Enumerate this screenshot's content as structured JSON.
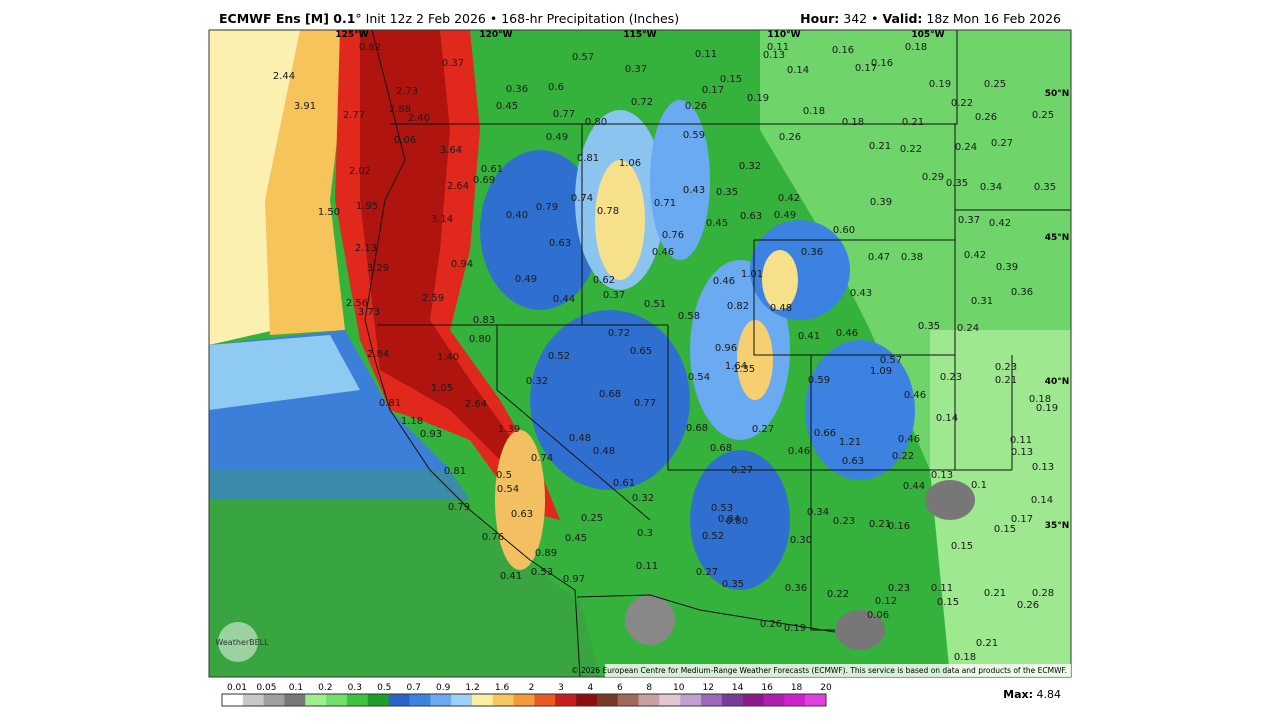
{
  "header": {
    "title_bold": "ECMWF Ens [M] 0.1",
    "title_rest": "° Init 12z 2 Feb 2026 • 168-hr Precipitation (Inches)",
    "hour_label": "Hour:",
    "hour": "342 •",
    "valid_label": "Valid:",
    "valid": "18z Mon 16 Feb 2026"
  },
  "map": {
    "longitudes": [
      "125°W",
      "120°W",
      "115°W",
      "110°W",
      "105°W"
    ],
    "latitudes": [
      "50°N",
      "45°N",
      "40°N",
      "35°N"
    ],
    "values": [
      "0.82",
      "0.37",
      "0.57",
      "0.37",
      "0.11",
      "0.11",
      "0.13",
      "0.16",
      "0.18",
      "0.17",
      "0.16",
      "2.44",
      "2.73",
      "0.36",
      "0.6",
      "0.15",
      "0.17",
      "0.14",
      "0.19",
      "0.25",
      "0.19",
      "3.91",
      "2.88",
      "0.45",
      "0.77",
      "0.72",
      "0.26",
      "0.18",
      "0.22",
      "2.77",
      "2.40",
      "0.80",
      "0.18",
      "0.21",
      "0.26",
      "0.25",
      "0.49",
      "0.59",
      "0.26",
      "0.24",
      "0.27",
      "0.06",
      "3.64",
      "0.81",
      "1.06",
      "0.21",
      "0.22",
      "0.32",
      "2.02",
      "0.61",
      "2.64",
      "0.69",
      "0.43",
      "0.35",
      "0.29",
      "0.35",
      "0.34",
      "0.35",
      "0.74",
      "0.71",
      "0.42",
      "0.39",
      "1.50",
      "1.95",
      "0.79",
      "0.78",
      "0.40",
      "0.45",
      "0.63",
      "0.49",
      "0.37",
      "0.42",
      "3.14",
      "0.60",
      "0.76",
      "0.63",
      "2.13",
      "0.46",
      "0.36",
      "0.47",
      "0.38",
      "0.42",
      "0.94",
      "3.29",
      "1.01",
      "0.39",
      "0.49",
      "0.62",
      "0.46",
      "0.43",
      "0.36",
      "0.44",
      "0.37",
      "0.51",
      "2.59",
      "2.56",
      "0.82",
      "0.48",
      "0.31",
      "3.73",
      "0.58",
      "0.83",
      "0.72",
      "0.35",
      "0.24",
      "0.80",
      "0.41",
      "0.46",
      "0.96",
      "0.65",
      "2.84",
      "1.40",
      "0.52",
      "1.64",
      "1.35",
      "0.57",
      "0.23",
      "0.54",
      "1.09",
      "0.59",
      "0.32",
      "0.23",
      "0.21",
      "1.05",
      "0.68",
      "0.46",
      "0.18",
      "0.19",
      "0.77",
      "2.64",
      "0.81",
      "0.14",
      "1.18",
      "0.68",
      "0.27",
      "0.66",
      "1.39",
      "0.93",
      "0.46",
      "0.11",
      "1.21",
      "0.48",
      "0.48",
      "0.68",
      "0.46",
      "0.13",
      "0.22",
      "0.74",
      "0.63",
      "0.27",
      "0.13",
      "0.81",
      "0.13",
      "0.5",
      "0.1",
      "0.54",
      "0.61",
      "0.44",
      "0.32",
      "0.14",
      "0.79",
      "0.53",
      "0.34",
      "0.63",
      "0.25",
      "0.84",
      "0.80",
      "0.23",
      "0.21",
      "0.16",
      "0.17",
      "0.15",
      "0.3",
      "0.76",
      "0.52",
      "0.45",
      "0.30",
      "0.15",
      "0.89",
      "0.11",
      "0.27",
      "0.53",
      "0.41",
      "0.97",
      "0.35",
      "0.36",
      "0.23",
      "0.11",
      "0.22",
      "0.21",
      "0.28",
      "0.12",
      "0.15",
      "0.26",
      "0.06",
      "0.26",
      "0.19",
      "0.21",
      "0.18"
    ],
    "logo": "WeatherBELL",
    "credit": "© 2026 European Centre for Medium-Range Weather Forecasts (ECMWF). This service is based on data and products of the ECMWF."
  },
  "colorbar": {
    "ticks": [
      "0.01",
      "0.05",
      "0.1",
      "0.2",
      "0.3",
      "0.5",
      "0.7",
      "0.9",
      "1.2",
      "1.6",
      "2",
      "3",
      "4",
      "6",
      "8",
      "10",
      "12",
      "14",
      "16",
      "18",
      "20"
    ],
    "colors": [
      "#ffffff",
      "#c8c8c8",
      "#a0a0a0",
      "#787878",
      "#9ef08f",
      "#6fe06a",
      "#3dc43d",
      "#1e9e2a",
      "#2a64c8",
      "#3c82e0",
      "#6aaaf0",
      "#9cd0f8",
      "#fbf0a0",
      "#f8c860",
      "#f39a3a",
      "#e85a22",
      "#c81e1e",
      "#8c0f0f",
      "#7a3a2a",
      "#a06a5a",
      "#c8a0a0",
      "#e0c8d0",
      "#c0a0d0",
      "#9a6ab8",
      "#7a3c9a",
      "#8c1a8c",
      "#b01eb0",
      "#d020d0",
      "#e040e0"
    ],
    "max_label": "Max:",
    "max": "4.84"
  }
}
